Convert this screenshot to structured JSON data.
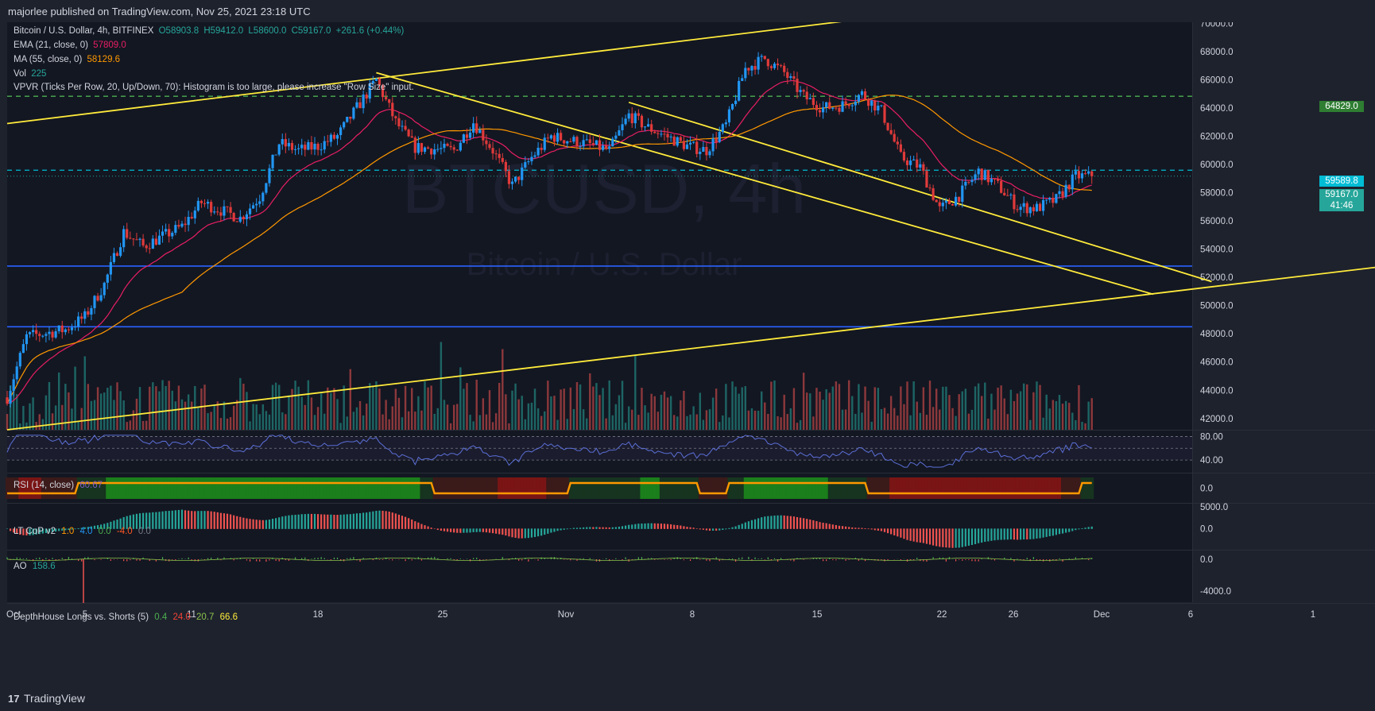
{
  "header": {
    "publish_text": "majorlee published on TradingView.com, Nov 25, 2021 23:18 UTC"
  },
  "footer": {
    "brand": "TradingView",
    "logo_glyph": "17"
  },
  "watermark": {
    "symbol": "BTCUSD, 4h",
    "name": "Bitcoin / U.S. Dollar"
  },
  "legend": {
    "symbol": "Bitcoin / U.S. Dollar, 4h, BITFINEX",
    "open": "O58903.8",
    "high": "H59412.0",
    "low": "L58600.0",
    "close": "C59167.0",
    "change": "+261.6 (+0.44%)",
    "ema_label": "EMA (21, close, 0)",
    "ema_value": "57809.0",
    "ma_label": "MA (55, close, 0)",
    "ma_value": "58129.6",
    "vol_label": "Vol",
    "vol_value": "225",
    "vpvr": "VPVR (Ticks Per Row, 20, Up/Down, 70): Histogram is too large, please increase \"Row Size\" input."
  },
  "indicators": {
    "rsi": {
      "label": "RSI (14, close)",
      "value": "60.67"
    },
    "ltcop": {
      "label": "LT CoP v2",
      "values": [
        "1.0",
        "4.0",
        "0.0",
        "-4.0",
        "0.0"
      ]
    },
    "ao": {
      "label": "AO",
      "value": "158.6"
    },
    "depthhouse": {
      "label": "DepthHouse Longs vs. Shorts (5)",
      "values": [
        "0.4",
        "24.0",
        "20.7",
        "66.6"
      ]
    }
  },
  "price_tags": {
    "green_line": "64829.0",
    "cyan_line": "59589.8",
    "last_price": "59167.0",
    "countdown": "41:46"
  },
  "colors": {
    "background": "#131722",
    "up": "#2196f3",
    "down": "#e03a3a",
    "ema": "#e91e63",
    "ma": "#ff9800",
    "trend": "#ffeb3b",
    "support": "#2962ff",
    "green_dash": "#4caf50",
    "cyan_dash": "#00bcd4"
  },
  "chart_data": {
    "type": "candlestick",
    "symbol": "BTCUSD",
    "exchange": "BITFINEX",
    "timeframe": "4h",
    "x_ticks": [
      "Oct",
      "5",
      "11",
      "18",
      "25",
      "Nov",
      "8",
      "15",
      "22",
      "26",
      "Dec",
      "6",
      "1"
    ],
    "y_ticks": [
      70000,
      68000,
      66000,
      64000,
      62000,
      60000,
      58000,
      56000,
      54000,
      52000,
      50000,
      48000,
      46000,
      44000,
      42000
    ],
    "ylim": [
      41200,
      70300
    ],
    "start_date": "2021-10-01",
    "end_date": "2021-11-26",
    "anchors": [
      [
        "2021-10-01",
        43500
      ],
      [
        "2021-10-02",
        47800
      ],
      [
        "2021-10-04",
        48300
      ],
      [
        "2021-10-05",
        49200
      ],
      [
        "2021-10-06",
        51500
      ],
      [
        "2021-10-07",
        55200
      ],
      [
        "2021-10-08",
        54200
      ],
      [
        "2021-10-10",
        55600
      ],
      [
        "2021-10-11",
        57300
      ],
      [
        "2021-10-13",
        56200
      ],
      [
        "2021-10-14",
        57700
      ],
      [
        "2021-10-15",
        61500
      ],
      [
        "2021-10-16",
        61000
      ],
      [
        "2021-10-17",
        61300
      ],
      [
        "2021-10-18",
        62000
      ],
      [
        "2021-10-19",
        64000
      ],
      [
        "2021-10-20",
        66000
      ],
      [
        "2021-10-21",
        63000
      ],
      [
        "2021-10-22",
        61200
      ],
      [
        "2021-10-24",
        61000
      ],
      [
        "2021-10-25",
        63000
      ],
      [
        "2021-10-26",
        61000
      ],
      [
        "2021-10-27",
        58500
      ],
      [
        "2021-10-28",
        60500
      ],
      [
        "2021-10-29",
        62000
      ],
      [
        "2021-10-31",
        61400
      ],
      [
        "2021-11-01",
        61000
      ],
      [
        "2021-11-02",
        63500
      ],
      [
        "2021-11-03",
        62600
      ],
      [
        "2021-11-05",
        61300
      ],
      [
        "2021-11-06",
        61000
      ],
      [
        "2021-11-07",
        62800
      ],
      [
        "2021-11-08",
        66800
      ],
      [
        "2021-11-09",
        67500
      ],
      [
        "2021-11-10",
        66500
      ],
      [
        "2021-11-11",
        64800
      ],
      [
        "2021-11-12",
        64000
      ],
      [
        "2021-11-13",
        64200
      ],
      [
        "2021-11-14",
        65000
      ],
      [
        "2021-11-15",
        63800
      ],
      [
        "2021-11-16",
        60500
      ],
      [
        "2021-11-17",
        59800
      ],
      [
        "2021-11-18",
        56800
      ],
      [
        "2021-11-19",
        57800
      ],
      [
        "2021-11-20",
        59500
      ],
      [
        "2021-11-21",
        58500
      ],
      [
        "2021-11-22",
        57000
      ],
      [
        "2021-11-23",
        56900
      ],
      [
        "2021-11-24",
        57500
      ],
      [
        "2021-11-25",
        59167
      ]
    ],
    "horizontal_lines": [
      {
        "price": 64829,
        "style": "dashed",
        "color": "#4caf50"
      },
      {
        "price": 59589.8,
        "style": "dashed",
        "color": "#00bcd4"
      },
      {
        "price": 52800,
        "style": "solid",
        "color": "#2962ff"
      },
      {
        "price": 48500,
        "style": "solid",
        "color": "#2962ff"
      }
    ],
    "trend_lines": [
      {
        "from": [
          "2021-10-01",
          62900
        ],
        "to": [
          "2021-11-14",
          70300
        ],
        "color": "#ffeb3b"
      },
      {
        "from": [
          "2021-10-01",
          41200
        ],
        "to": [
          "2021-12-11",
          52800
        ],
        "color": "#ffeb3b"
      },
      {
        "from": [
          "2021-10-20",
          66500
        ],
        "to": [
          "2021-11-29",
          50800
        ],
        "color": "#ffeb3b"
      },
      {
        "from": [
          "2021-11-02",
          64400
        ],
        "to": [
          "2021-12-02",
          51700
        ],
        "color": "#ffeb3b"
      }
    ],
    "rsi": {
      "ylim": [
        20,
        90
      ],
      "y_ticks": [
        80,
        40
      ],
      "last": 60.67
    },
    "ao": {
      "y_ticks": [
        5000,
        0
      ],
      "last": 158.6
    },
    "depthhouse": {
      "y_ticks": [
        0,
        -4000
      ],
      "last": 66.6
    },
    "ltcop": {
      "y_ticks": [
        0
      ]
    }
  }
}
